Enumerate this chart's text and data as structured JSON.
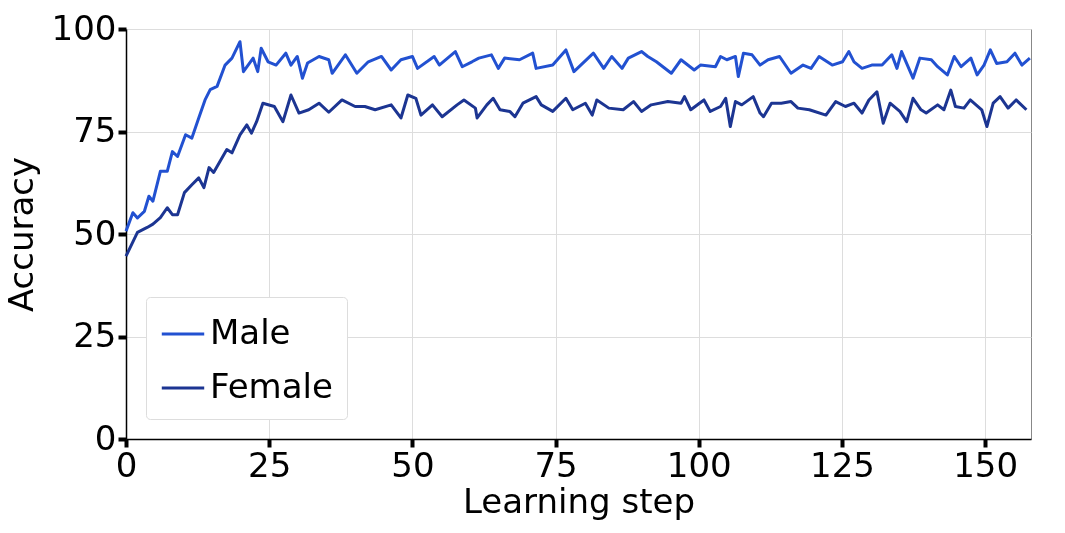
{
  "chart_data": {
    "type": "line",
    "xlabel": "Learning step",
    "ylabel": "Accuracy",
    "xlim": [
      0,
      158
    ],
    "ylim": [
      0,
      100
    ],
    "xticks": [
      0,
      25,
      50,
      75,
      100,
      125,
      150
    ],
    "yticks": [
      0,
      25,
      50,
      75,
      100
    ],
    "grid": true,
    "legend": "bottom left",
    "line_style": "solid",
    "marker": "none",
    "series": [
      {
        "name": "Male",
        "color": "#2251d1",
        "x": [
          0,
          1.2,
          2,
          3.2,
          4,
          4.7,
          6,
          7.2,
          8.1,
          9,
          10.4,
          11.5,
          12.7,
          13.8,
          14.7,
          15.9,
          17.3,
          18.5,
          19.9,
          20.5,
          22.2,
          23,
          23.6,
          24.8,
          26.2,
          27.9,
          28.8,
          29.9,
          30.8,
          31.7,
          33.7,
          35.4,
          36,
          38.3,
          40.3,
          42.3,
          44.6,
          46.3,
          48,
          50,
          50.9,
          53.8,
          54.7,
          57.5,
          58.7,
          60.4,
          61.6,
          63.8,
          65,
          66.1,
          68.7,
          71,
          71.6,
          74.5,
          76.8,
          78.2,
          81.6,
          83.4,
          84.8,
          86.6,
          87.7,
          90,
          91.1,
          92.6,
          95.2,
          96.9,
          99.2,
          100.3,
          102.9,
          103.8,
          104.9,
          106.4,
          106.9,
          107.8,
          109.3,
          110.7,
          112.1,
          114.1,
          116.1,
          118.2,
          119.6,
          121,
          123.3,
          125.1,
          126.2,
          127.1,
          128.5,
          130.2,
          132,
          133.7,
          134.6,
          135.4,
          137.4,
          138.6,
          140.6,
          141.7,
          143.4,
          144.6,
          145.8,
          147.5,
          148.6,
          149.8,
          150.9,
          152,
          153.8,
          155.2,
          156.4,
          157.8
        ],
        "values": [
          50.7,
          55.2,
          53.9,
          55.5,
          59.2,
          58,
          65.3,
          65.3,
          70.1,
          68.9,
          74.2,
          73.4,
          78.3,
          82.7,
          85.2,
          86,
          91.2,
          92.9,
          96.9,
          89.6,
          92.9,
          89.6,
          95.3,
          92,
          91.2,
          94.1,
          91.2,
          93.3,
          88,
          91.7,
          93.3,
          92.5,
          89.2,
          93.7,
          89.2,
          92,
          93.3,
          90,
          92.5,
          93.3,
          90.4,
          93.3,
          91.2,
          94.5,
          90.8,
          92,
          92.9,
          93.7,
          90.4,
          92.9,
          92.5,
          94.1,
          90.4,
          91.2,
          94.9,
          89.6,
          94.1,
          90.4,
          93.3,
          90.4,
          92.9,
          94.5,
          93.3,
          92,
          89.2,
          92.5,
          90,
          91.2,
          90.8,
          93.3,
          92.5,
          93.3,
          88.4,
          94.1,
          93.7,
          91.2,
          92.5,
          93.3,
          89.2,
          91.2,
          90.4,
          93.3,
          91.2,
          92,
          94.5,
          92,
          90.4,
          91.2,
          91.2,
          93.7,
          90.4,
          94.5,
          88,
          92.9,
          92.5,
          90.8,
          88.8,
          93.3,
          90.8,
          92.9,
          88.8,
          91.2,
          94.9,
          91.6,
          92,
          94.1,
          91.2,
          92.9
        ]
      },
      {
        "name": "Female",
        "color": "#1c3592",
        "x": [
          0,
          2,
          3.7,
          4.7,
          6,
          7.2,
          8.1,
          9,
          10.2,
          11.5,
          12.7,
          13.6,
          14.5,
          15.3,
          16.4,
          17.6,
          18.5,
          19.9,
          21.1,
          21.9,
          22.8,
          23.9,
          25.9,
          27.4,
          28.8,
          30.2,
          31.9,
          33.7,
          35.4,
          37.7,
          40,
          41.7,
          43.5,
          46.3,
          48,
          49.2,
          50.6,
          51.5,
          53.5,
          55.2,
          57.8,
          59,
          61,
          61.3,
          63,
          64.1,
          65.3,
          67,
          67.9,
          69.3,
          71.6,
          72.5,
          74.5,
          76.8,
          78,
          80.2,
          81.4,
          82.2,
          84.3,
          86.8,
          88.6,
          90,
          91.7,
          94.6,
          96.9,
          97.5,
          98.6,
          100.9,
          102,
          103.8,
          104.7,
          105.5,
          106.4,
          107.5,
          109.5,
          110.7,
          111.3,
          112.7,
          114.4,
          116.1,
          117.3,
          119.3,
          122.2,
          123.9,
          125.6,
          127.1,
          128.5,
          129.7,
          131.1,
          132.2,
          133.4,
          135.1,
          136.3,
          137.4,
          138.8,
          139.7,
          141.7,
          142.8,
          144,
          144.8,
          146.3,
          147.4,
          149.4,
          150.3,
          151.4,
          152.6,
          154,
          155.4,
          157.2
        ],
        "values": [
          44.6,
          50.4,
          51.6,
          52.4,
          54,
          56.4,
          54.7,
          54.7,
          60.1,
          62,
          63.7,
          61.3,
          66.2,
          65,
          67.7,
          70.6,
          69.8,
          74.2,
          76.6,
          74.6,
          77.4,
          81.9,
          81.1,
          77.4,
          83.9,
          79.5,
          80.3,
          81.9,
          79.7,
          82.7,
          81.1,
          81.1,
          80.3,
          81.5,
          78.3,
          83.9,
          83.1,
          79,
          81.5,
          78.6,
          81.5,
          82.7,
          80.7,
          78.3,
          81.5,
          83.1,
          80.3,
          79.9,
          78.6,
          81.9,
          83.5,
          81.5,
          79.9,
          83.1,
          80.3,
          81.9,
          79,
          82.7,
          80.7,
          80.3,
          82.3,
          79.9,
          81.5,
          82.3,
          81.9,
          83.5,
          80.3,
          82.7,
          79.9,
          81.1,
          83.1,
          76.2,
          82.3,
          81.5,
          83.5,
          79.5,
          78.6,
          81.9,
          81.9,
          82.3,
          80.7,
          80.3,
          79,
          82.3,
          81.1,
          81.9,
          79.5,
          82.7,
          84.7,
          77,
          81.9,
          79.9,
          77.4,
          83.1,
          80.3,
          79.5,
          81.5,
          80.3,
          85.1,
          81.1,
          80.7,
          82.7,
          80.3,
          76.2,
          81.9,
          83.5,
          80.7,
          82.7,
          80.3
        ]
      }
    ]
  }
}
